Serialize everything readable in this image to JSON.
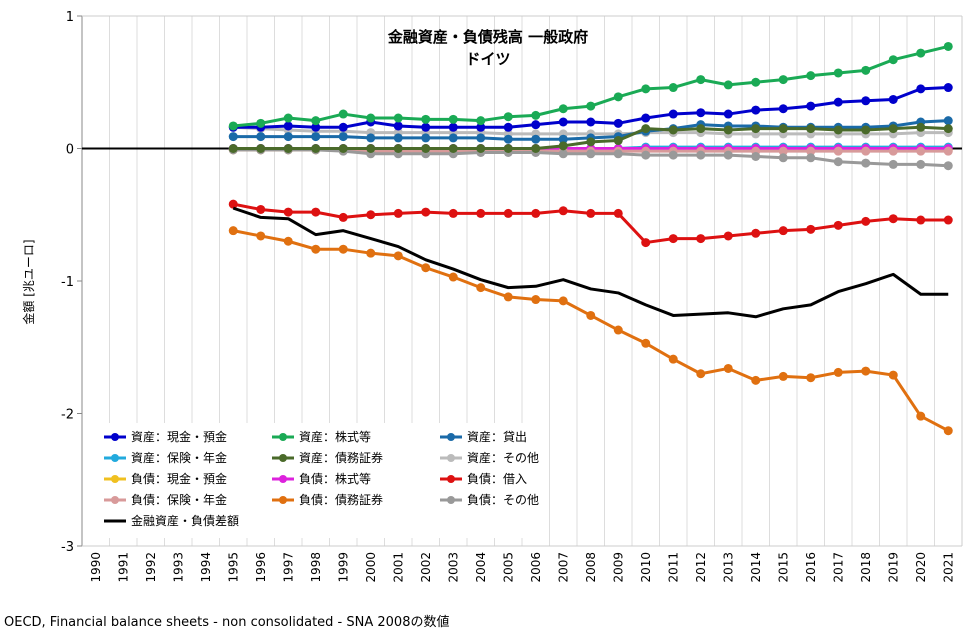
{
  "chart_data": {
    "type": "line",
    "title": "金融資産・負債残高 一般政府",
    "subtitle": "ドイツ",
    "ylabel": "金額 [兆ユーロ]",
    "xlabel": "",
    "source": "OECD, Financial balance sheets - non consolidated - SNA 2008の数値",
    "ylim": [
      -3,
      1
    ],
    "yticks": [
      "1",
      "0",
      "-1",
      "-2",
      "-3"
    ],
    "xlim": [
      1990,
      2021
    ],
    "x": [
      1995,
      1996,
      1997,
      1998,
      1999,
      2000,
      2001,
      2002,
      2003,
      2004,
      2005,
      2006,
      2007,
      2008,
      2009,
      2010,
      2011,
      2012,
      2013,
      2014,
      2015,
      2016,
      2017,
      2018,
      2019,
      2020,
      2021
    ],
    "xticks": [
      "1990",
      "1991",
      "1992",
      "1993",
      "1994",
      "1995",
      "1996",
      "1997",
      "1998",
      "1999",
      "2000",
      "2001",
      "2002",
      "2003",
      "2004",
      "2005",
      "2006",
      "2007",
      "2008",
      "2009",
      "2010",
      "2011",
      "2012",
      "2013",
      "2014",
      "2015",
      "2016",
      "2017",
      "2018",
      "2019",
      "2020",
      "2021"
    ],
    "series": [
      {
        "name": "資産：現金・預金",
        "color": "#0000cc",
        "values": [
          0.16,
          0.16,
          0.17,
          0.16,
          0.16,
          0.2,
          0.17,
          0.16,
          0.16,
          0.16,
          0.16,
          0.18,
          0.2,
          0.2,
          0.19,
          0.23,
          0.26,
          0.27,
          0.26,
          0.29,
          0.3,
          0.32,
          0.35,
          0.36,
          0.37,
          0.45,
          0.46
        ]
      },
      {
        "name": "資産：株式等",
        "color": "#1aaa55",
        "values": [
          0.17,
          0.19,
          0.23,
          0.21,
          0.26,
          0.23,
          0.23,
          0.22,
          0.22,
          0.21,
          0.24,
          0.25,
          0.3,
          0.32,
          0.39,
          0.45,
          0.46,
          0.52,
          0.48,
          0.5,
          0.52,
          0.55,
          0.57,
          0.59,
          0.67,
          0.72,
          0.77
        ]
      },
      {
        "name": "資産：貸出",
        "color": "#1a6aa8",
        "values": [
          0.09,
          0.09,
          0.09,
          0.09,
          0.09,
          0.08,
          0.08,
          0.08,
          0.08,
          0.08,
          0.07,
          0.07,
          0.07,
          0.08,
          0.09,
          0.13,
          0.15,
          0.18,
          0.17,
          0.17,
          0.16,
          0.16,
          0.16,
          0.16,
          0.17,
          0.2,
          0.21
        ]
      },
      {
        "name": "資産：保険・年金",
        "color": "#22aadd",
        "values": [
          0.0,
          0.0,
          0.0,
          0.0,
          0.0,
          0.0,
          0.0,
          0.0,
          0.0,
          0.0,
          0.0,
          0.0,
          0.0,
          0.0,
          0.0,
          0.01,
          0.01,
          0.01,
          0.01,
          0.01,
          0.01,
          0.01,
          0.01,
          0.01,
          0.01,
          0.01,
          0.01
        ]
      },
      {
        "name": "資産：債務証券",
        "color": "#4a6a2a",
        "values": [
          0.0,
          0.0,
          0.0,
          0.0,
          0.0,
          0.0,
          0.0,
          0.0,
          0.0,
          0.0,
          0.0,
          0.0,
          0.02,
          0.05,
          0.06,
          0.15,
          0.14,
          0.15,
          0.14,
          0.15,
          0.15,
          0.15,
          0.14,
          0.14,
          0.15,
          0.16,
          0.15
        ]
      },
      {
        "name": "資産：その他",
        "color": "#bbbbbb",
        "values": [
          0.16,
          0.15,
          0.14,
          0.13,
          0.13,
          0.12,
          0.12,
          0.12,
          0.12,
          0.12,
          0.11,
          0.11,
          0.11,
          0.11,
          0.11,
          0.12,
          0.12,
          0.12,
          0.11,
          0.11,
          0.11,
          0.11,
          0.11,
          0.11,
          0.11,
          0.12,
          0.12
        ]
      },
      {
        "name": "負債：現金・預金",
        "color": "#f0c020",
        "values": [
          -0.01,
          -0.01,
          -0.01,
          -0.01,
          -0.01,
          -0.01,
          -0.01,
          -0.01,
          -0.01,
          -0.01,
          -0.01,
          -0.01,
          -0.01,
          -0.01,
          -0.01,
          -0.01,
          -0.01,
          -0.01,
          -0.01,
          -0.01,
          -0.01,
          -0.01,
          -0.01,
          -0.01,
          -0.01,
          -0.01,
          -0.01
        ]
      },
      {
        "name": "負債：株式等",
        "color": "#dd22dd",
        "values": [
          0.0,
          0.0,
          0.0,
          0.0,
          0.0,
          0.0,
          0.0,
          0.0,
          0.0,
          0.0,
          0.0,
          0.0,
          0.0,
          0.0,
          0.0,
          0.0,
          0.0,
          0.0,
          0.0,
          0.0,
          0.0,
          0.0,
          0.0,
          0.0,
          0.0,
          0.0,
          0.0
        ]
      },
      {
        "name": "負債：借入",
        "color": "#dd1111",
        "values": [
          -0.42,
          -0.46,
          -0.48,
          -0.48,
          -0.52,
          -0.5,
          -0.49,
          -0.48,
          -0.49,
          -0.49,
          -0.49,
          -0.49,
          -0.47,
          -0.49,
          -0.49,
          -0.71,
          -0.68,
          -0.68,
          -0.66,
          -0.64,
          -0.62,
          -0.61,
          -0.58,
          -0.55,
          -0.53,
          -0.54,
          -0.54
        ]
      },
      {
        "name": "負債：保険・年金",
        "color": "#d89a9a",
        "values": [
          -0.01,
          -0.01,
          -0.01,
          -0.01,
          -0.01,
          -0.02,
          -0.02,
          -0.02,
          -0.02,
          -0.02,
          -0.02,
          -0.02,
          -0.02,
          -0.02,
          -0.02,
          -0.02,
          -0.02,
          -0.02,
          -0.02,
          -0.02,
          -0.02,
          -0.02,
          -0.02,
          -0.02,
          -0.02,
          -0.02,
          -0.02
        ]
      },
      {
        "name": "負債：債務証券",
        "color": "#e07010",
        "values": [
          -0.62,
          -0.66,
          -0.7,
          -0.76,
          -0.76,
          -0.79,
          -0.81,
          -0.9,
          -0.97,
          -1.05,
          -1.12,
          -1.14,
          -1.15,
          -1.26,
          -1.37,
          -1.47,
          -1.59,
          -1.7,
          -1.66,
          -1.75,
          -1.72,
          -1.73,
          -1.69,
          -1.68,
          -1.71,
          -2.02,
          -2.13
        ]
      },
      {
        "name": "負債：その他",
        "color": "#999999",
        "values": [
          -0.01,
          -0.01,
          -0.01,
          -0.01,
          -0.02,
          -0.04,
          -0.04,
          -0.04,
          -0.04,
          -0.03,
          -0.03,
          -0.03,
          -0.04,
          -0.04,
          -0.04,
          -0.05,
          -0.05,
          -0.05,
          -0.05,
          -0.06,
          -0.07,
          -0.07,
          -0.1,
          -0.11,
          -0.12,
          -0.12,
          -0.13
        ]
      },
      {
        "name": "金融資産・負債差額",
        "color": "#000000",
        "nomarker": true,
        "values": [
          -0.45,
          -0.52,
          -0.53,
          -0.65,
          -0.62,
          -0.68,
          -0.74,
          -0.84,
          -0.91,
          -0.99,
          -1.05,
          -1.04,
          -0.99,
          -1.06,
          -1.09,
          -1.18,
          -1.26,
          -1.25,
          -1.24,
          -1.27,
          -1.21,
          -1.18,
          -1.08,
          -1.02,
          -0.95,
          -1.1,
          -1.1
        ]
      }
    ],
    "grid": "vertical",
    "legend": "lower-left"
  }
}
